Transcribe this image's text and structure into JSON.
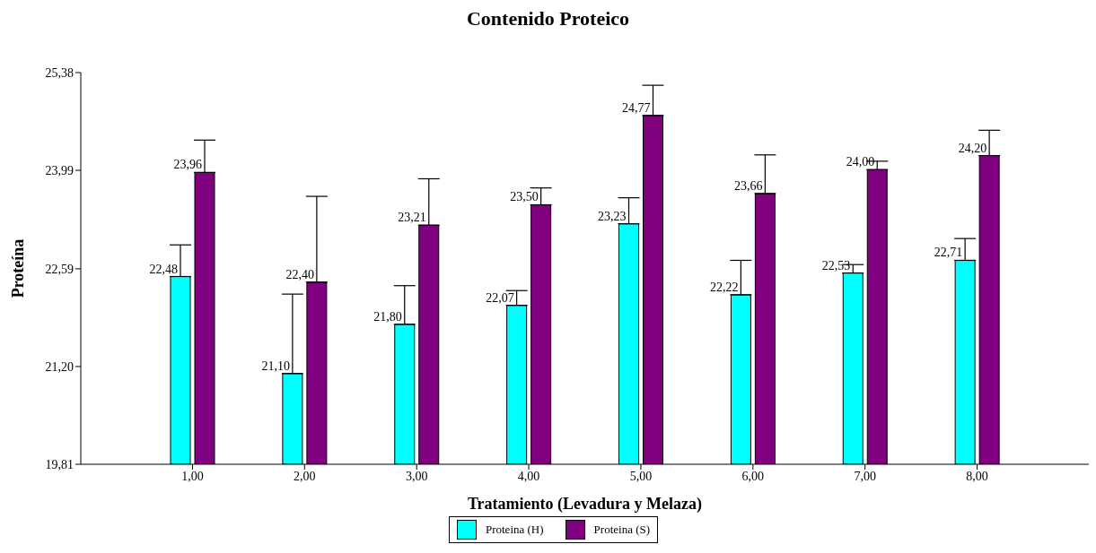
{
  "chart_data": {
    "type": "bar",
    "title": "Contenido Proteico",
    "xlabel": "Tratamiento (Levadura y Melaza)",
    "ylabel": "Proteína",
    "categories": [
      "1,00",
      "2,00",
      "3,00",
      "4,00",
      "5,00",
      "6,00",
      "7,00",
      "8,00"
    ],
    "series": [
      {
        "name": "Proteina (H)",
        "color": "#00ffff",
        "values": [
          22.48,
          21.1,
          21.8,
          22.07,
          23.23,
          22.22,
          22.53,
          22.71
        ],
        "value_labels": [
          "22,48",
          "21,10",
          "21,80",
          "22,07",
          "23,23",
          "22,22",
          "22,53",
          "22,71"
        ],
        "errors": [
          [
            22.48,
            22.93
          ],
          [
            21.1,
            22.23
          ],
          [
            21.8,
            22.35
          ],
          [
            22.07,
            22.28
          ],
          [
            23.23,
            23.6
          ],
          [
            22.22,
            22.71
          ],
          [
            22.53,
            22.65
          ],
          [
            22.71,
            23.02
          ]
        ]
      },
      {
        "name": "Proteina (S)",
        "color": "#800080",
        "values": [
          23.96,
          22.4,
          23.21,
          23.5,
          24.77,
          23.66,
          24.0,
          24.2
        ],
        "value_labels": [
          "23,96",
          "22,40",
          "23,21",
          "23,50",
          "24,77",
          "23,66",
          "24,00",
          "24,20"
        ],
        "errors": [
          [
            23.96,
            24.42
          ],
          [
            22.4,
            23.62
          ],
          [
            23.21,
            23.87
          ],
          [
            23.5,
            23.74
          ],
          [
            24.77,
            25.2
          ],
          [
            23.66,
            24.21
          ],
          [
            24.0,
            24.12
          ],
          [
            24.2,
            24.56
          ]
        ]
      }
    ],
    "ylim": [
      19.81,
      25.38
    ],
    "yticks": [
      {
        "value": 19.81,
        "label": "19,81"
      },
      {
        "value": 21.2,
        "label": "21,20"
      },
      {
        "value": 22.59,
        "label": "22,59"
      },
      {
        "value": 23.99,
        "label": "23,99"
      },
      {
        "value": 25.38,
        "label": "25,38"
      }
    ],
    "grid": false,
    "legend": "bottom"
  }
}
